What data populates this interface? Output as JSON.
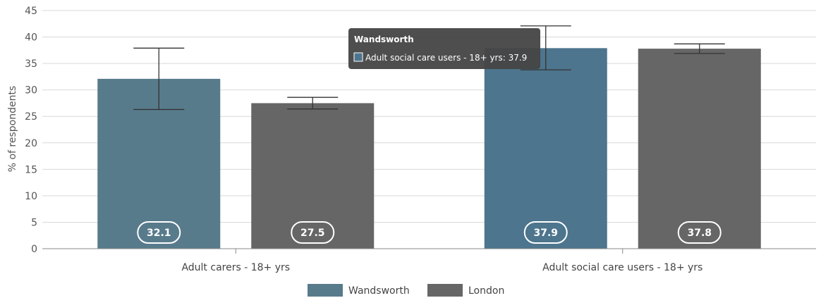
{
  "chart_data": {
    "type": "bar",
    "title": "",
    "xlabel": "",
    "ylabel": "% of respondents",
    "ylim": [
      0,
      45
    ],
    "yticks": [
      0,
      5,
      10,
      15,
      20,
      25,
      30,
      35,
      40,
      45
    ],
    "grid": true,
    "legend_position": "bottom-center",
    "categories": [
      "Adult carers - 18+ yrs",
      "Adult social care users - 18+ yrs"
    ],
    "series": [
      {
        "name": "Wandsworth",
        "color": "#587b8c",
        "values": [
          32.1,
          37.9
        ],
        "error_low": [
          26.3,
          33.8
        ],
        "error_high": [
          37.9,
          42.1
        ],
        "data_labels": [
          "32.1",
          "37.9"
        ]
      },
      {
        "name": "London",
        "color": "#666666",
        "values": [
          27.5,
          37.8
        ],
        "error_low": [
          26.4,
          36.9
        ],
        "error_high": [
          28.6,
          38.7
        ],
        "data_labels": [
          "27.5",
          "37.8"
        ]
      }
    ],
    "highlight": {
      "series": 0,
      "category": 1,
      "color": "#4d758d"
    },
    "tooltip": {
      "title": "Wandsworth",
      "text": "Adult social care users - 18+ yrs: 37.9"
    }
  }
}
